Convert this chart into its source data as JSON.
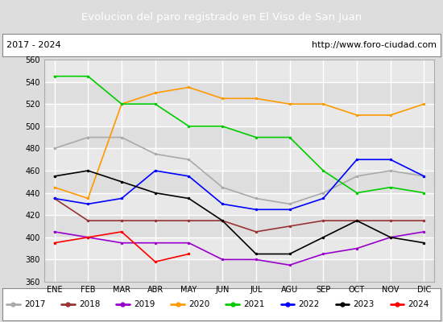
{
  "title": "Evolucion del paro registrado en El Viso de San Juan",
  "title_bg": "#5b9bd5",
  "subtitle_left": "2017 - 2024",
  "subtitle_right": "http://www.foro-ciudad.com",
  "ylim": [
    360,
    560
  ],
  "yticks": [
    360,
    380,
    400,
    420,
    440,
    460,
    480,
    500,
    520,
    540,
    560
  ],
  "months": [
    "ENE",
    "FEB",
    "MAR",
    "ABR",
    "MAY",
    "JUN",
    "JUL",
    "AGU",
    "SEP",
    "OCT",
    "NOV",
    "DIC"
  ],
  "series": {
    "2017": {
      "color": "#aaaaaa",
      "values": [
        480,
        490,
        490,
        475,
        470,
        445,
        435,
        430,
        440,
        455,
        460,
        455
      ]
    },
    "2018": {
      "color": "#993333",
      "values": [
        435,
        415,
        415,
        415,
        415,
        415,
        405,
        410,
        415,
        415,
        415,
        415
      ]
    },
    "2019": {
      "color": "#9900cc",
      "values": [
        405,
        400,
        395,
        395,
        395,
        380,
        380,
        375,
        385,
        390,
        400,
        405
      ]
    },
    "2020": {
      "color": "#ff9900",
      "values": [
        445,
        435,
        520,
        530,
        535,
        525,
        525,
        520,
        520,
        510,
        510,
        520
      ]
    },
    "2021": {
      "color": "#00cc00",
      "values": [
        545,
        545,
        520,
        520,
        500,
        500,
        490,
        490,
        460,
        440,
        445,
        440
      ]
    },
    "2022": {
      "color": "#0000ff",
      "values": [
        435,
        430,
        435,
        460,
        455,
        430,
        425,
        425,
        435,
        470,
        470,
        455
      ]
    },
    "2023": {
      "color": "#000000",
      "values": [
        455,
        460,
        450,
        440,
        435,
        415,
        385,
        385,
        400,
        415,
        400,
        395
      ]
    },
    "2024": {
      "color": "#ff0000",
      "values": [
        395,
        400,
        405,
        378,
        385,
        null,
        null,
        null,
        null,
        null,
        null,
        null
      ]
    }
  },
  "legend_order": [
    "2017",
    "2018",
    "2019",
    "2020",
    "2021",
    "2022",
    "2023",
    "2024"
  ],
  "bg_color": "#dddddd",
  "plot_bg": "#e8e8e8",
  "grid_color": "#ffffff"
}
